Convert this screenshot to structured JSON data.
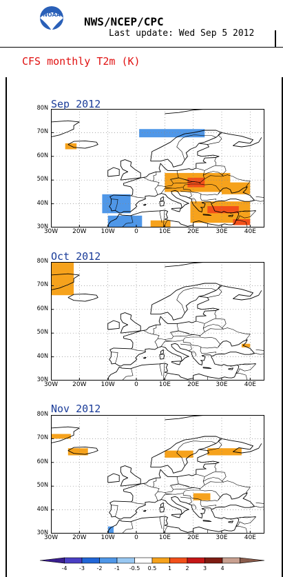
{
  "header": {
    "logo_text": "NOAA",
    "agency": "NWS/NCEP/CPC",
    "update": "Last update: Wed Sep 5 2012"
  },
  "product": "CFS monthly T2m (K)",
  "axes": {
    "lat_labels": [
      "80N",
      "70N",
      "60N",
      "50N",
      "40N",
      "30N"
    ],
    "lon_labels": [
      "30W",
      "20W",
      "10W",
      "0",
      "10E",
      "20E",
      "30E",
      "40E"
    ]
  },
  "panels": [
    {
      "title": "Sep 2012",
      "anomalies": [
        {
          "lon": [
            1,
            24
          ],
          "lat": [
            68,
            71.5
          ],
          "class": -1
        },
        {
          "lon": [
            -25,
            -21
          ],
          "lat": [
            63,
            65.5
          ],
          "class": 1
        },
        {
          "lon": [
            10,
            33
          ],
          "lat": [
            45,
            53
          ],
          "class": 1
        },
        {
          "lon": [
            18,
            24
          ],
          "lat": [
            47,
            51
          ],
          "class": 2
        },
        {
          "lon": [
            30,
            40
          ],
          "lat": [
            44,
            49
          ],
          "class": 1
        },
        {
          "lon": [
            19,
            40
          ],
          "lat": [
            32,
            41
          ],
          "class": 1
        },
        {
          "lon": [
            25,
            36
          ],
          "lat": [
            36,
            39
          ],
          "class": 2
        },
        {
          "lon": [
            34,
            40
          ],
          "lat": [
            31,
            33.5
          ],
          "class": 2
        },
        {
          "lon": [
            -12,
            -2
          ],
          "lat": [
            36,
            44
          ],
          "class": -1
        },
        {
          "lon": [
            -10,
            2
          ],
          "lat": [
            30,
            35
          ],
          "class": -1
        },
        {
          "lon": [
            5,
            12
          ],
          "lat": [
            30,
            33
          ],
          "class": 1
        }
      ]
    },
    {
      "title": "Oct 2012",
      "anomalies": [
        {
          "lon": [
            -30,
            -22
          ],
          "lat": [
            66,
            80
          ],
          "class": 1
        },
        {
          "lon": [
            37,
            40
          ],
          "lat": [
            44,
            45.5
          ],
          "class": 1
        }
      ]
    },
    {
      "title": "Nov 2012",
      "anomalies": [
        {
          "lon": [
            -30,
            -23
          ],
          "lat": [
            70,
            72
          ],
          "class": 1
        },
        {
          "lon": [
            -24,
            -17
          ],
          "lat": [
            63,
            66
          ],
          "class": 1
        },
        {
          "lon": [
            10,
            20
          ],
          "lat": [
            62,
            65
          ],
          "class": 1
        },
        {
          "lon": [
            25,
            37
          ],
          "lat": [
            63,
            66
          ],
          "class": 1
        },
        {
          "lon": [
            20,
            26
          ],
          "lat": [
            44,
            47
          ],
          "class": 1
        },
        {
          "lon": [
            -10,
            -8
          ],
          "lat": [
            30,
            33
          ],
          "class": -1
        }
      ]
    }
  ],
  "legend": {
    "labels": [
      "-4",
      "-3",
      "-2",
      "-1",
      "-0.5",
      "0.5",
      "1",
      "2",
      "3",
      "4"
    ],
    "colors": [
      "#3a1f8f",
      "#4a3fc4",
      "#2166d8",
      "#4f97e8",
      "#99c8f2",
      "#ffffff",
      "#f6a21c",
      "#f2501a",
      "#c51616",
      "#7e1c12",
      "#c8a090",
      "#8a5c4c"
    ]
  },
  "colors": {
    "pos1": "#f6a21c",
    "pos2": "#f2501a",
    "neg1": "#4f97e8",
    "title": "#1a3c99",
    "product": "#e01010"
  }
}
